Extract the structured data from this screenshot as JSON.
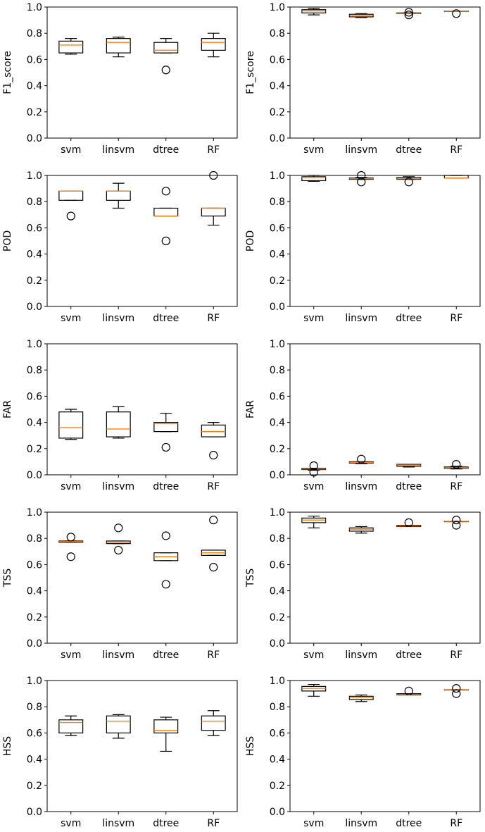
{
  "chart_data": [
    {
      "type": "boxplot",
      "ylabel": "F1_score",
      "ylim": [
        0,
        1.0
      ],
      "yticks": [
        "0.0",
        "0.2",
        "0.4",
        "0.6",
        "0.8",
        "1.0"
      ],
      "categories": [
        "svm",
        "linsvm",
        "dtree",
        "RF"
      ],
      "boxes": [
        {
          "whislo": 0.64,
          "q1": 0.65,
          "med": 0.71,
          "q3": 0.74,
          "whishi": 0.76,
          "fliers": []
        },
        {
          "whislo": 0.62,
          "q1": 0.65,
          "med": 0.73,
          "q3": 0.76,
          "whishi": 0.77,
          "fliers": []
        },
        {
          "whislo": 0.65,
          "q1": 0.65,
          "med": 0.67,
          "q3": 0.73,
          "whishi": 0.76,
          "fliers": [
            0.52
          ]
        },
        {
          "whislo": 0.62,
          "q1": 0.67,
          "med": 0.73,
          "q3": 0.76,
          "whishi": 0.8,
          "fliers": []
        }
      ]
    },
    {
      "type": "boxplot",
      "ylabel": "F1_score",
      "ylim": [
        0,
        1.0
      ],
      "yticks": [
        "0.0",
        "0.2",
        "0.4",
        "0.6",
        "0.8",
        "1.0"
      ],
      "categories": [
        "svm",
        "linsvm",
        "dtree",
        "RF"
      ],
      "boxes": [
        {
          "whislo": 0.94,
          "q1": 0.955,
          "med": 0.97,
          "q3": 0.98,
          "whishi": 0.99,
          "fliers": []
        },
        {
          "whislo": 0.92,
          "q1": 0.925,
          "med": 0.935,
          "q3": 0.945,
          "whishi": 0.95,
          "fliers": []
        },
        {
          "whislo": 0.95,
          "q1": 0.95,
          "med": 0.95,
          "q3": 0.955,
          "whishi": 0.955,
          "fliers": [
            0.96,
            0.94
          ]
        },
        {
          "whislo": 0.97,
          "q1": 0.97,
          "med": 0.97,
          "q3": 0.97,
          "whishi": 0.97,
          "fliers": [
            0.95
          ]
        }
      ]
    },
    {
      "type": "boxplot",
      "ylabel": "POD",
      "ylim": [
        0,
        1.0
      ],
      "yticks": [
        "0.0",
        "0.2",
        "0.4",
        "0.6",
        "0.8",
        "1.0"
      ],
      "categories": [
        "svm",
        "linsvm",
        "dtree",
        "RF"
      ],
      "boxes": [
        {
          "whislo": 0.81,
          "q1": 0.81,
          "med": 0.88,
          "q3": 0.88,
          "whishi": 0.88,
          "fliers": [
            0.69
          ]
        },
        {
          "whislo": 0.75,
          "q1": 0.81,
          "med": 0.88,
          "q3": 0.88,
          "whishi": 0.94,
          "fliers": []
        },
        {
          "whislo": 0.69,
          "q1": 0.69,
          "med": 0.69,
          "q3": 0.75,
          "whishi": 0.75,
          "fliers": [
            0.88,
            0.5
          ]
        },
        {
          "whislo": 0.62,
          "q1": 0.69,
          "med": 0.75,
          "q3": 0.75,
          "whishi": 0.75,
          "fliers": [
            1.0
          ]
        }
      ]
    },
    {
      "type": "boxplot",
      "ylabel": "POD",
      "ylim": [
        0,
        1.0
      ],
      "yticks": [
        "0.0",
        "0.2",
        "0.4",
        "0.6",
        "0.8",
        "1.0"
      ],
      "categories": [
        "svm",
        "linsvm",
        "dtree",
        "RF"
      ],
      "boxes": [
        {
          "whislo": 0.955,
          "q1": 0.96,
          "med": 0.985,
          "q3": 0.99,
          "whishi": 1.0,
          "fliers": []
        },
        {
          "whislo": 0.97,
          "q1": 0.97,
          "med": 0.975,
          "q3": 0.98,
          "whishi": 0.985,
          "fliers": [
            0.95,
            1.0
          ]
        },
        {
          "whislo": 0.97,
          "q1": 0.97,
          "med": 0.975,
          "q3": 0.985,
          "whishi": 0.99,
          "fliers": [
            0.95
          ]
        },
        {
          "whislo": 0.98,
          "q1": 0.98,
          "med": 0.98,
          "q3": 1.0,
          "whishi": 1.0,
          "fliers": []
        }
      ]
    },
    {
      "type": "boxplot",
      "ylabel": "FAR",
      "ylim": [
        0,
        1.0
      ],
      "yticks": [
        "0.0",
        "0.2",
        "0.4",
        "0.6",
        "0.8",
        "1.0"
      ],
      "categories": [
        "svm",
        "linsvm",
        "dtree",
        "RF"
      ],
      "boxes": [
        {
          "whislo": 0.27,
          "q1": 0.28,
          "med": 0.36,
          "q3": 0.48,
          "whishi": 0.5,
          "fliers": []
        },
        {
          "whislo": 0.28,
          "q1": 0.29,
          "med": 0.35,
          "q3": 0.48,
          "whishi": 0.52,
          "fliers": []
        },
        {
          "whislo": 0.33,
          "q1": 0.33,
          "med": 0.39,
          "q3": 0.4,
          "whishi": 0.47,
          "fliers": [
            0.21
          ]
        },
        {
          "whislo": 0.29,
          "q1": 0.29,
          "med": 0.33,
          "q3": 0.38,
          "whishi": 0.4,
          "fliers": [
            0.15
          ]
        }
      ]
    },
    {
      "type": "boxplot",
      "ylabel": "FAR",
      "ylim": [
        0,
        1.0
      ],
      "yticks": [
        "0.0",
        "0.2",
        "0.4",
        "0.6",
        "0.8",
        "1.0"
      ],
      "categories": [
        "svm",
        "linsvm",
        "dtree",
        "RF"
      ],
      "boxes": [
        {
          "whislo": 0.035,
          "q1": 0.04,
          "med": 0.045,
          "q3": 0.05,
          "whishi": 0.05,
          "fliers": [
            0.07,
            0.02
          ]
        },
        {
          "whislo": 0.085,
          "q1": 0.09,
          "med": 0.095,
          "q3": 0.1,
          "whishi": 0.1,
          "fliers": [
            0.12
          ]
        },
        {
          "whislo": 0.06,
          "q1": 0.065,
          "med": 0.075,
          "q3": 0.08,
          "whishi": 0.08,
          "fliers": []
        },
        {
          "whislo": 0.045,
          "q1": 0.05,
          "med": 0.055,
          "q3": 0.06,
          "whishi": 0.065,
          "fliers": [
            0.08
          ]
        }
      ]
    },
    {
      "type": "boxplot",
      "ylabel": "TSS",
      "ylim": [
        0,
        1.0
      ],
      "yticks": [
        "0.0",
        "0.2",
        "0.4",
        "0.6",
        "0.8",
        "1.0"
      ],
      "categories": [
        "svm",
        "linsvm",
        "dtree",
        "RF"
      ],
      "boxes": [
        {
          "whislo": 0.77,
          "q1": 0.77,
          "med": 0.775,
          "q3": 0.78,
          "whishi": 0.78,
          "fliers": [
            0.81,
            0.66
          ]
        },
        {
          "whislo": 0.76,
          "q1": 0.76,
          "med": 0.77,
          "q3": 0.78,
          "whishi": 0.78,
          "fliers": [
            0.88,
            0.71
          ]
        },
        {
          "whislo": 0.63,
          "q1": 0.63,
          "med": 0.66,
          "q3": 0.69,
          "whishi": 0.69,
          "fliers": [
            0.82,
            0.45
          ]
        },
        {
          "whislo": 0.67,
          "q1": 0.67,
          "med": 0.69,
          "q3": 0.71,
          "whishi": 0.71,
          "fliers": [
            0.94,
            0.58
          ]
        }
      ]
    },
    {
      "type": "boxplot",
      "ylabel": "TSS",
      "ylim": [
        0,
        1.0
      ],
      "yticks": [
        "0.0",
        "0.2",
        "0.4",
        "0.6",
        "0.8",
        "1.0"
      ],
      "categories": [
        "svm",
        "linsvm",
        "dtree",
        "RF"
      ],
      "boxes": [
        {
          "whislo": 0.88,
          "q1": 0.92,
          "med": 0.94,
          "q3": 0.955,
          "whishi": 0.97,
          "fliers": []
        },
        {
          "whislo": 0.84,
          "q1": 0.855,
          "med": 0.87,
          "q3": 0.88,
          "whishi": 0.89,
          "fliers": []
        },
        {
          "whislo": 0.89,
          "q1": 0.89,
          "med": 0.895,
          "q3": 0.9,
          "whishi": 0.9,
          "fliers": [
            0.92
          ]
        },
        {
          "whislo": 0.93,
          "q1": 0.93,
          "med": 0.93,
          "q3": 0.93,
          "whishi": 0.93,
          "fliers": [
            0.94,
            0.9
          ]
        }
      ]
    },
    {
      "type": "boxplot",
      "ylabel": "HSS",
      "ylim": [
        0,
        1.0
      ],
      "yticks": [
        "0.0",
        "0.2",
        "0.4",
        "0.6",
        "0.8",
        "1.0"
      ],
      "categories": [
        "svm",
        "linsvm",
        "dtree",
        "RF"
      ],
      "boxes": [
        {
          "whislo": 0.58,
          "q1": 0.6,
          "med": 0.68,
          "q3": 0.7,
          "whishi": 0.73,
          "fliers": []
        },
        {
          "whislo": 0.56,
          "q1": 0.6,
          "med": 0.69,
          "q3": 0.73,
          "whishi": 0.74,
          "fliers": []
        },
        {
          "whislo": 0.46,
          "q1": 0.6,
          "med": 0.62,
          "q3": 0.7,
          "whishi": 0.72,
          "fliers": []
        },
        {
          "whislo": 0.58,
          "q1": 0.62,
          "med": 0.69,
          "q3": 0.73,
          "whishi": 0.77,
          "fliers": []
        }
      ]
    },
    {
      "type": "boxplot",
      "ylabel": "HSS",
      "ylim": [
        0,
        1.0
      ],
      "yticks": [
        "0.0",
        "0.2",
        "0.4",
        "0.6",
        "0.8",
        "1.0"
      ],
      "categories": [
        "svm",
        "linsvm",
        "dtree",
        "RF"
      ],
      "boxes": [
        {
          "whislo": 0.88,
          "q1": 0.92,
          "med": 0.94,
          "q3": 0.955,
          "whishi": 0.97,
          "fliers": []
        },
        {
          "whislo": 0.84,
          "q1": 0.855,
          "med": 0.87,
          "q3": 0.88,
          "whishi": 0.89,
          "fliers": []
        },
        {
          "whislo": 0.89,
          "q1": 0.89,
          "med": 0.895,
          "q3": 0.9,
          "whishi": 0.9,
          "fliers": [
            0.92
          ]
        },
        {
          "whislo": 0.93,
          "q1": 0.93,
          "med": 0.93,
          "q3": 0.93,
          "whishi": 0.93,
          "fliers": [
            0.94,
            0.9
          ]
        }
      ]
    }
  ],
  "colors": {
    "box": "#000000",
    "median": "#ff7f0e",
    "background": "#ffffff"
  }
}
